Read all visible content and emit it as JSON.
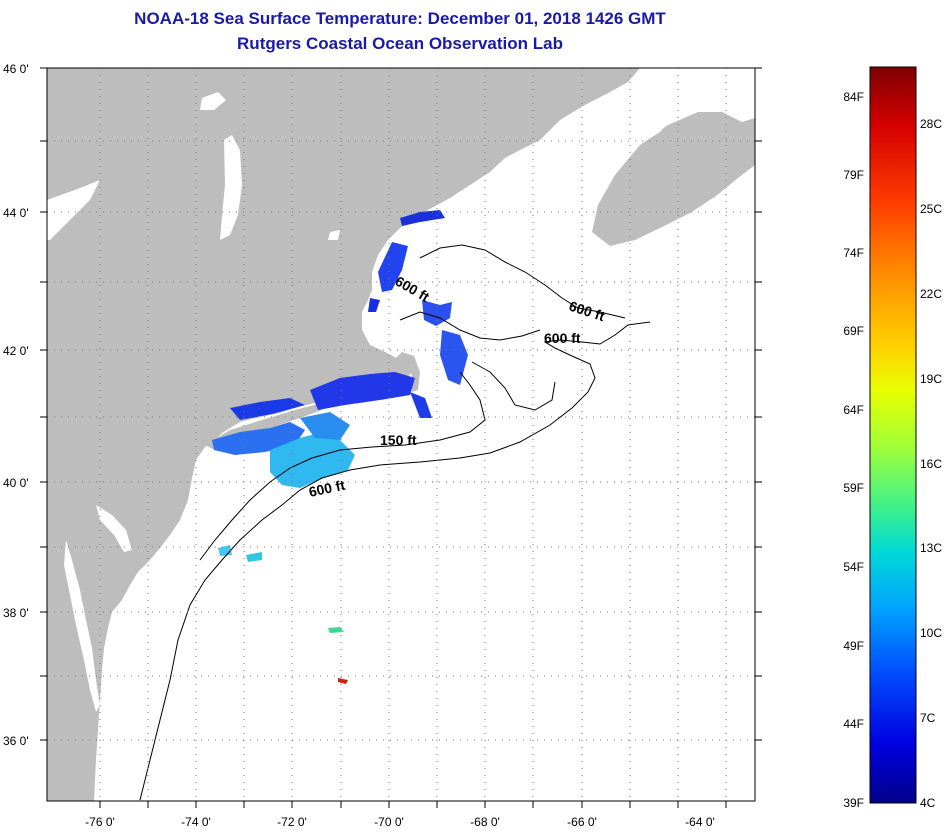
{
  "header": {
    "title": "NOAA-18 Sea Surface Temperature:  December 01, 2018 1426 GMT",
    "subtitle": "Rutgers Coastal Ocean Observation Lab"
  },
  "map": {
    "lat_labels": [
      "46 0'",
      "44 0'",
      "42 0'",
      "40 0'",
      "38 0'",
      "36 0'"
    ],
    "lon_labels": [
      "-76 0'",
      "-74 0'",
      "-72 0'",
      "-70 0'",
      "-68 0'",
      "-66 0'",
      "-64 0'"
    ],
    "contour_labels": [
      "600 ft",
      "600 ft",
      "600 ft",
      "150 ft",
      "600 ft"
    ],
    "land_color": "#bdbdbd",
    "grid": "dotted"
  },
  "colorbar": {
    "fahrenheit_labels": [
      "84F",
      "79F",
      "74F",
      "69F",
      "64F",
      "59F",
      "54F",
      "49F",
      "44F",
      "39F"
    ],
    "celsius_labels": [
      "28C",
      "25C",
      "22C",
      "19C",
      "16C",
      "13C",
      "10C",
      "7C",
      "4C"
    ],
    "colors": [
      "#7f0000",
      "#d40000",
      "#ff3a00",
      "#ff8c00",
      "#ffd200",
      "#e8ff00",
      "#9cff3c",
      "#3cf08c",
      "#00d8d8",
      "#00a0ff",
      "#0050ff",
      "#0000e0",
      "#00008a"
    ]
  }
}
